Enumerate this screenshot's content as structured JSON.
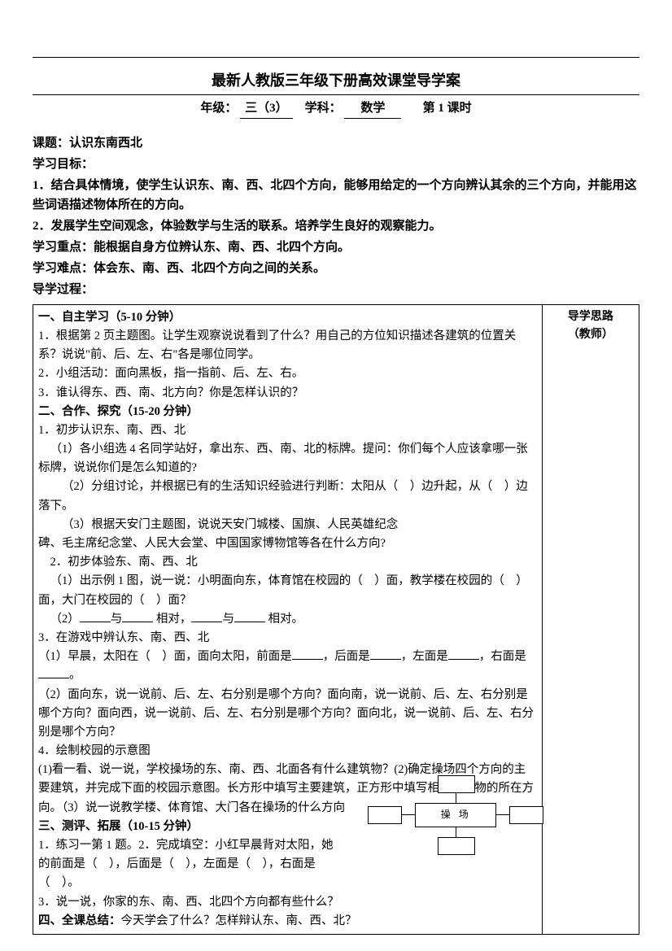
{
  "header": {
    "main_title": "最新人教版三年级下册高效课堂导学案",
    "grade_label": "年级：",
    "grade_value": "三（3）",
    "subject_label": "学科：",
    "subject_value": "数学",
    "period_label": "第 1 课时"
  },
  "preamble": {
    "topic_label": "课题：",
    "topic_value": "认识东南西北",
    "goals_label": "学习目标：",
    "goal1": "1．结合具体情境，使学生认识东、南、西、北四个方向，能够用给定的一个方向辨认其余的三个方向，并能用这些词语描述物体所在的方向。",
    "goal2": "2．发展学生空间观念，体验数学与生活的联系。培养学生良好的观察能力。",
    "keypoint_label": "学习重点：",
    "keypoint_value": "能根据自身方位辨认东、南、西、北四个方向。",
    "difficulty_label": "学习难点：",
    "difficulty_value": "体会东、南、西、北四个方向之间的关系。",
    "process_label": "导学过程："
  },
  "content": {
    "s1_title": "一、自主学习（5-10 分钟）",
    "s1_1": "1．根据第 2 页主题图。让学生观察说说看到了什么？用自己的方位知识描述各建筑的位置关系？说说\"前、后、左、右\"各是哪位同学。",
    "s1_2": "2．小组活动：面向黑板，指一指前、后、左、右。",
    "s1_3": "3．谁认得东、西、南、北方向？你是怎样认识的？",
    "s2_title": "二、合作、探究（15-20 分钟）",
    "s2_1": "1．初步认识东、南、西、北",
    "s2_1_1": "（1）各小组选 4 名同学站好，拿出东、西、南、北的标牌。提问：你们每个人应该拿哪一张标牌，说说你们是怎么知道的?",
    "s2_1_2a": "（2）分组讨论，并根据已有的生活知识经验进行判断：太阳从（　）边升起，从（　）边",
    "s2_1_2b": "落下。",
    "s2_1_3": "（3）根据天安门主题图，说说天安门城楼、国旗、人民英雄纪念",
    "s2_1_3b": "碑、毛主席纪念堂、人民大会堂、中国国家博物馆等各在什么方向?",
    "s2_2": "2．初步体验东、南、西、北",
    "s2_2_1": "（1）出示例 1 图，说一说：小明面向东，体育馆在校园的（　）面，教学楼在校园的（　）面，大门在校园的（　）面？",
    "s2_2_2a": "（2）",
    "s2_2_2b": "与",
    "s2_2_2c": "相对，",
    "s2_2_2d": "与",
    "s2_2_2e": "相对。",
    "s2_3": "3．在游戏中辨认东、南、西、北",
    "s2_3_1a": "（1）早晨，太阳在（　）面，面向太阳，前面是",
    "s2_3_1b": "，后面是",
    "s2_3_1c": "，左面是",
    "s2_3_1d": "，右面是",
    "s2_3_1e": "。",
    "s2_3_2": "（2）面向东，说一说前、后、左、右分别是哪个方向？面向南，说一说前、后、左、右分别是哪个方向？面向西，说一说前、后、左、右分别是哪个方向？面向北，说一说前、后、左、右分别是哪个方向？",
    "s2_4": "4．绘制校园的示意图",
    "s2_4_1": "(1)看一看、说一说，学校操场的东、南、西、北面各有什么建筑物？(2)确定操场四个方向的主要建筑，并完成下面的校园示意图。长方形中填写主要建筑，正方形中填写相应建筑物的所在方向。（3）说一说教学楼、体育馆、大门各在操场的什么方向",
    "s3_title": "三、测评、拓展（10-15 分钟）",
    "s3_1": "1．练习一第 1 题。2．完成填空：小红早晨背对太阳，她的前面是（　），后面是（　），左面是（　），右面是（　）。",
    "s3_3": "3．说一说，你家的东、南、西、北四个方向都有些什么？",
    "s4_title": "四、全课总结：",
    "s4_text": "今天学会了什么？怎样辩认东、南、西、北？"
  },
  "notes": {
    "title": "导学思路",
    "sub": "（教师）"
  },
  "diagram": {
    "center_label": "操场"
  }
}
